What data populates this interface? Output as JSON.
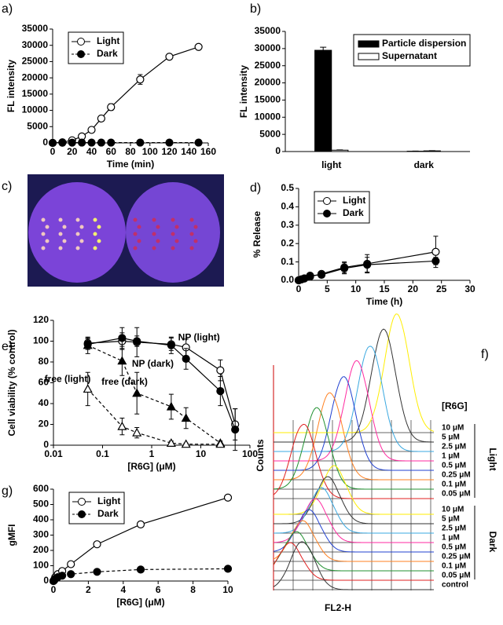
{
  "chart_data": [
    {
      "type": "line",
      "panel": "a)",
      "xlabel": "Time (min)",
      "ylabel": "FL intensity",
      "x": [
        0,
        10,
        20,
        30,
        40,
        50,
        60,
        90,
        120,
        150
      ],
      "xlim": [
        0,
        160
      ],
      "xticks": [
        0,
        20,
        40,
        60,
        80,
        100,
        120,
        140,
        160
      ],
      "ylim": [
        0,
        35000
      ],
      "yticks": [
        0,
        5000,
        10000,
        15000,
        20000,
        25000,
        30000,
        35000
      ],
      "legend": "upper left",
      "series": [
        {
          "name": "Light",
          "color": "#000000",
          "marker": "circle",
          "fill": "#ffffff",
          "dash": false,
          "values": [
            0,
            200,
            800,
            2000,
            4000,
            7500,
            11000,
            19500,
            26500,
            29500
          ],
          "errors": [
            100,
            150,
            200,
            300,
            400,
            700,
            1000,
            1500,
            800,
            300
          ]
        },
        {
          "name": "Dark",
          "color": "#000000",
          "marker": "circle",
          "fill": "#000000",
          "dash": true,
          "values": [
            0,
            50,
            80,
            100,
            100,
            100,
            100,
            100,
            100,
            100
          ],
          "errors": [
            50,
            50,
            50,
            50,
            50,
            50,
            50,
            50,
            50,
            50
          ]
        }
      ]
    },
    {
      "type": "bar",
      "panel": "b)",
      "ylabel": "FL intensity",
      "categories": [
        "light",
        "dark"
      ],
      "ylim": [
        0,
        35000
      ],
      "yticks": [
        0,
        5000,
        10000,
        15000,
        20000,
        25000,
        30000,
        35000
      ],
      "legend": "upper right",
      "series": [
        {
          "name": "Particle dispersion",
          "color": "#000000",
          "values": [
            29500,
            100
          ],
          "errors": [
            900,
            50
          ]
        },
        {
          "name": "Supernatant",
          "color": "#ffffff",
          "values": [
            400,
            200
          ],
          "errors": [
            100,
            50
          ]
        }
      ]
    },
    {
      "type": "line",
      "panel": "d)",
      "xlabel": "Time (h)",
      "ylabel": "% Release",
      "x": [
        0,
        0.5,
        1,
        2,
        4,
        8,
        12,
        24
      ],
      "xlim": [
        0,
        30
      ],
      "xticks": [
        0,
        5,
        10,
        15,
        20,
        25,
        30
      ],
      "ylim": [
        0,
        0.5
      ],
      "yticks": [
        {
          "value": 0,
          "label": "0.0"
        },
        0.1,
        0.2,
        0.3,
        0.4,
        0.5
      ],
      "legend": "upper left",
      "series": [
        {
          "name": "Light",
          "color": "#000000",
          "marker": "circle",
          "fill": "#ffffff",
          "dash": false,
          "values": [
            0,
            0.005,
            0.01,
            0.02,
            0.035,
            0.07,
            0.09,
            0.155
          ],
          "errors": [
            0,
            0.002,
            0.005,
            0.005,
            0.01,
            0.03,
            0.05,
            0.085
          ]
        },
        {
          "name": "Dark",
          "color": "#000000",
          "marker": "circle",
          "fill": "#000000",
          "dash": false,
          "values": [
            0,
            0.005,
            0.01,
            0.025,
            0.03,
            0.065,
            0.085,
            0.105
          ],
          "errors": [
            0,
            0.002,
            0.005,
            0.005,
            0.01,
            0.03,
            0.04,
            0.02
          ]
        }
      ]
    },
    {
      "type": "line",
      "panel": "e)",
      "xlabel": "[R6G] (μM)",
      "ylabel": "Cell viability (% control)",
      "log_x": true,
      "x": [
        0.05,
        0.25,
        0.5,
        2.5,
        5,
        25,
        50
      ],
      "xlim": [
        0.01,
        100
      ],
      "xticks": [
        0.01,
        0.1,
        1,
        10,
        100
      ],
      "ylim": [
        0,
        120
      ],
      "yticks": [
        0,
        20,
        40,
        60,
        80,
        100,
        120
      ],
      "legend": "annotate",
      "series": [
        {
          "name": "NP (light)",
          "color": "#000000",
          "marker": "circle",
          "fill": "#ffffff",
          "dash": false,
          "values": [
            98,
            100,
            99,
            97,
            94,
            72,
            20
          ],
          "errors": [
            5,
            8,
            14,
            6,
            8,
            10,
            15
          ]
        },
        {
          "name": "NP (dark)",
          "color": "#000000",
          "marker": "circle",
          "fill": "#000000",
          "dash": false,
          "values": [
            97,
            103,
            100,
            96,
            83,
            52,
            15
          ],
          "errors": [
            5,
            10,
            5,
            8,
            10,
            14,
            20
          ]
        },
        {
          "name": "free (dark)",
          "color": "#000000",
          "marker": "triangle",
          "fill": "#000000",
          "dash": true,
          "values": [
            96,
            81,
            50,
            37,
            26,
            2,
            null
          ],
          "errors": [
            8,
            14,
            20,
            12,
            10,
            2,
            null
          ]
        },
        {
          "name": "free (light)",
          "color": "#000000",
          "marker": "triangle",
          "fill": "#ffffff",
          "dash": true,
          "values": [
            54,
            18,
            12,
            2,
            1,
            1,
            null
          ],
          "errors": [
            16,
            8,
            5,
            2,
            1,
            1,
            null
          ]
        }
      ]
    },
    {
      "type": "line",
      "panel": "g)",
      "xlabel": "[R6G] (μM)",
      "ylabel": "gMFI",
      "x": [
        0,
        0.05,
        0.1,
        0.25,
        0.5,
        1,
        2.5,
        5,
        10
      ],
      "xlim": [
        0,
        10
      ],
      "xticks": [
        0,
        2,
        4,
        6,
        8,
        10
      ],
      "ylim": [
        0,
        600
      ],
      "yticks": [
        0,
        100,
        200,
        300,
        400,
        500,
        600
      ],
      "legend": "upper left",
      "series": [
        {
          "name": "Light",
          "color": "#000000",
          "marker": "circle",
          "fill": "#ffffff",
          "dash": false,
          "values": [
            0,
            10,
            25,
            45,
            65,
            110,
            240,
            370,
            545
          ]
        },
        {
          "name": "Dark",
          "color": "#000000",
          "marker": "circle",
          "fill": "#000000",
          "dash": true,
          "values": [
            0,
            5,
            15,
            25,
            35,
            45,
            60,
            75,
            80
          ]
        }
      ]
    }
  ],
  "photo": {
    "panel": "c)"
  },
  "flow": {
    "panel": "f)",
    "ylabel": "Counts",
    "xlabel": "FL2-H",
    "legend_title": "[R6G]",
    "groups": [
      {
        "name": "Light",
        "labels": [
          "10 μM",
          "5 μM",
          "2.5 μM",
          "1 μM",
          "0.5 μM",
          "0.25 μM",
          "0.1 μM",
          "0.05 μM"
        ]
      },
      {
        "name": "Dark",
        "labels": [
          "10 μM",
          "5 μM",
          "2.5 μM",
          "1 μM",
          "0.5 μM",
          "0.25 μM",
          "0.1 μM",
          "0.05 μM"
        ]
      }
    ],
    "control": "control"
  }
}
